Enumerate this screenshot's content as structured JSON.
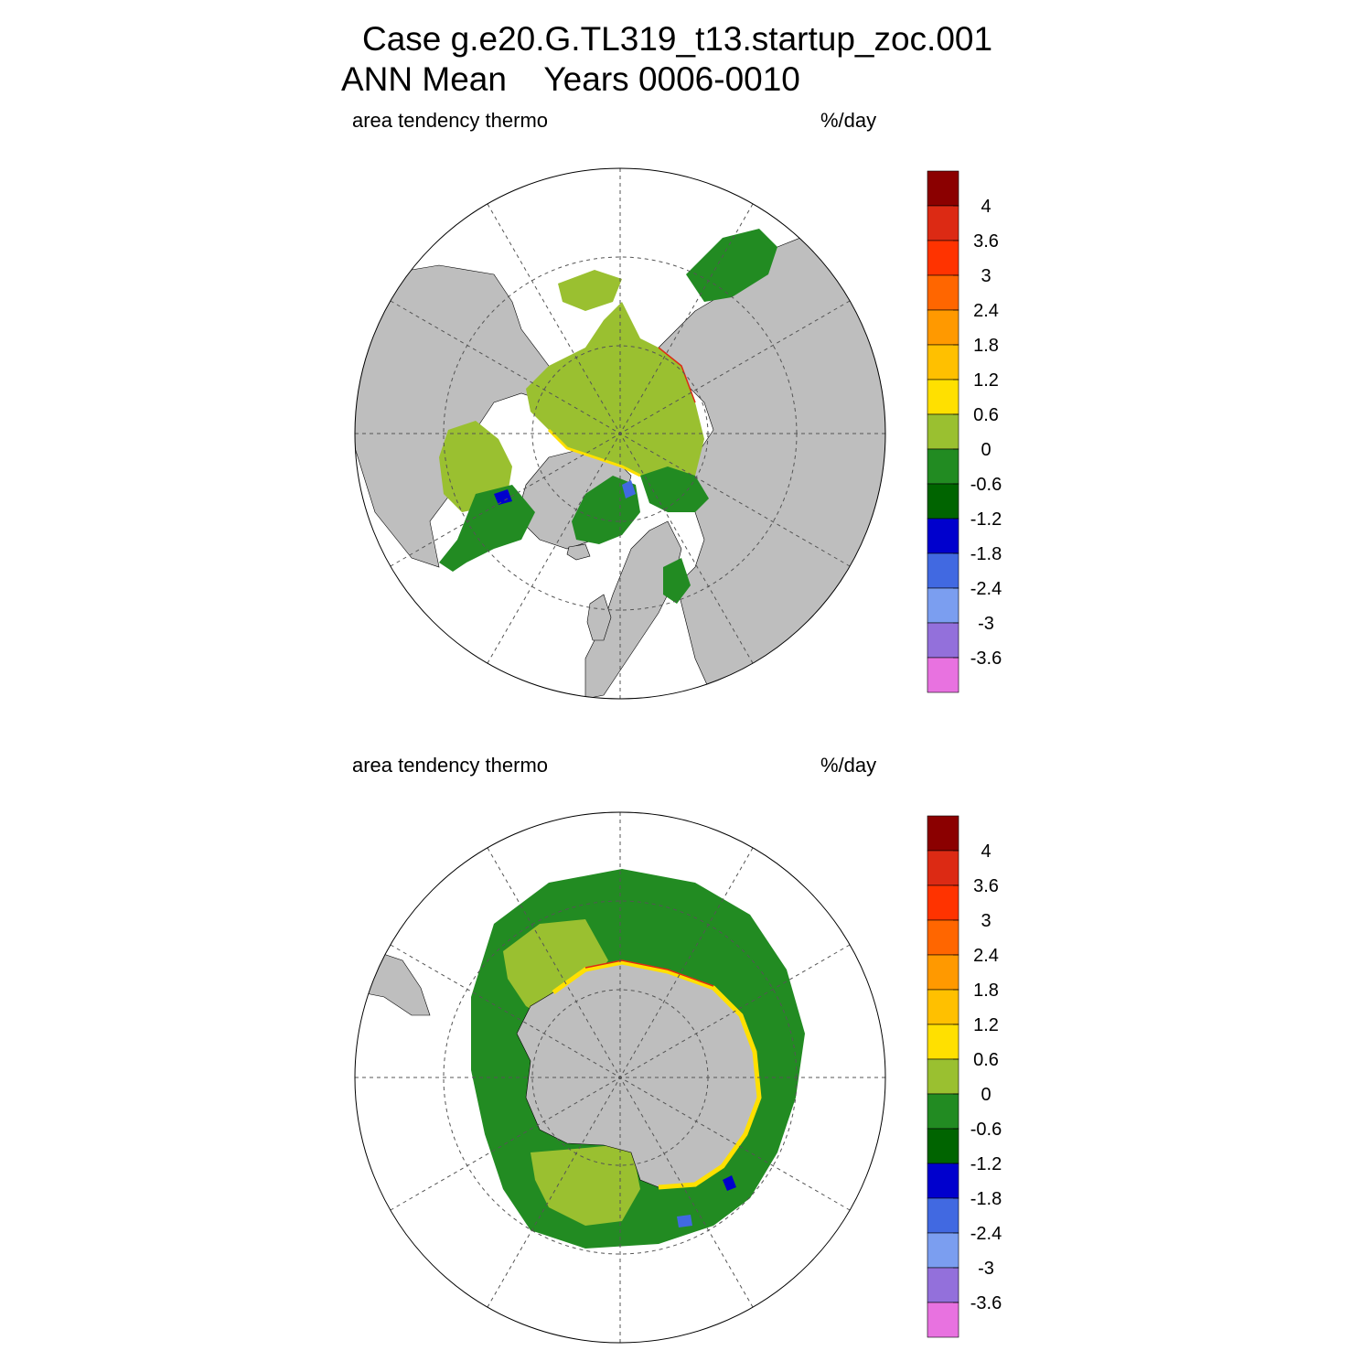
{
  "figure": {
    "title_line1": "Case g.e20.G.TL319_t13.startup_zoc.001",
    "title_line2": "ANN Mean    Years 0006-0010"
  },
  "panels": [
    {
      "hemisphere": "north",
      "variable_label": "area tendency thermo",
      "units": "%/day"
    },
    {
      "hemisphere": "south",
      "variable_label": "area tendency thermo",
      "units": "%/day"
    }
  ],
  "colorbar": {
    "labels": [
      "4",
      "3.6",
      "3",
      "2.4",
      "1.8",
      "1.2",
      "0.6",
      "0",
      "-0.6",
      "-1.2",
      "-1.8",
      "-2.4",
      "-3",
      "-3.6"
    ],
    "colors": [
      "#8b0000",
      "#dc2a14",
      "#ff3300",
      "#ff6600",
      "#ff9900",
      "#ffc000",
      "#ffe000",
      "#9ac030",
      "#228b22",
      "#006400",
      "#0000cd",
      "#4169e1",
      "#7b9ef0",
      "#9370db",
      "#e872e0"
    ]
  },
  "colors": {
    "land": "#bebebe",
    "ocean_no_ice": "#ffffff",
    "ice_zero": "#9ac030",
    "ice_neg": "#228b22",
    "ice_pos": "#ffe000"
  }
}
